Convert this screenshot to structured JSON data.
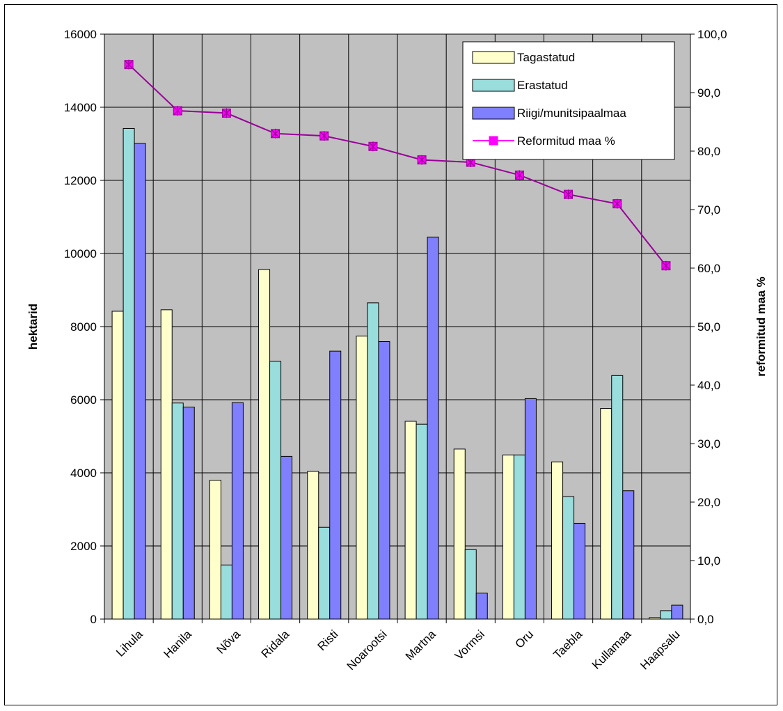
{
  "chart_data": {
    "type": "bar",
    "categories": [
      "Lihula",
      "Hanila",
      "Nõva",
      "Ridala",
      "Risti",
      "Noarootsi",
      "Martna",
      "Vormsi",
      "Oru",
      "Taebla",
      "Kullamaa",
      "Haapsalu"
    ],
    "series": [
      {
        "name": "Tagastatud",
        "type": "bar",
        "axis": "left",
        "color": "#ffffcc",
        "values": [
          8420,
          8460,
          3800,
          9560,
          4040,
          7740,
          5410,
          4650,
          4490,
          4300,
          5760,
          40
        ]
      },
      {
        "name": "Erastatud",
        "type": "bar",
        "axis": "left",
        "color": "#99dddd",
        "values": [
          13420,
          5910,
          1480,
          7050,
          2510,
          8650,
          5330,
          1900,
          4490,
          3350,
          6660,
          230
        ]
      },
      {
        "name": "Riigi/munitsipaalmaa",
        "type": "bar",
        "axis": "left",
        "color": "#8080ff",
        "values": [
          13010,
          5800,
          5920,
          4450,
          7330,
          7590,
          10450,
          710,
          6030,
          2620,
          3510,
          380
        ]
      },
      {
        "name": "Reformitud maa %",
        "type": "line",
        "axis": "right",
        "color": "#990099",
        "marker_color": "#ff00ff",
        "values": [
          94.8,
          86.9,
          86.5,
          83.0,
          82.6,
          80.8,
          78.5,
          78.1,
          75.9,
          72.6,
          71.0,
          60.4
        ]
      }
    ],
    "ylabel": "hektarid",
    "y2label": "reformitud maa %",
    "ylim": [
      0,
      16000
    ],
    "y2lim": [
      0,
      100
    ],
    "yticks": [
      "0",
      "2000",
      "4000",
      "6000",
      "8000",
      "10000",
      "12000",
      "14000",
      "16000"
    ],
    "y2ticks": [
      "0,0",
      "10,0",
      "20,0",
      "30,0",
      "40,0",
      "50,0",
      "60,0",
      "70,0",
      "80,0",
      "90,0",
      "100,0"
    ],
    "grid": true,
    "plot_background": "#c0c0c0",
    "legend": "top-right"
  }
}
